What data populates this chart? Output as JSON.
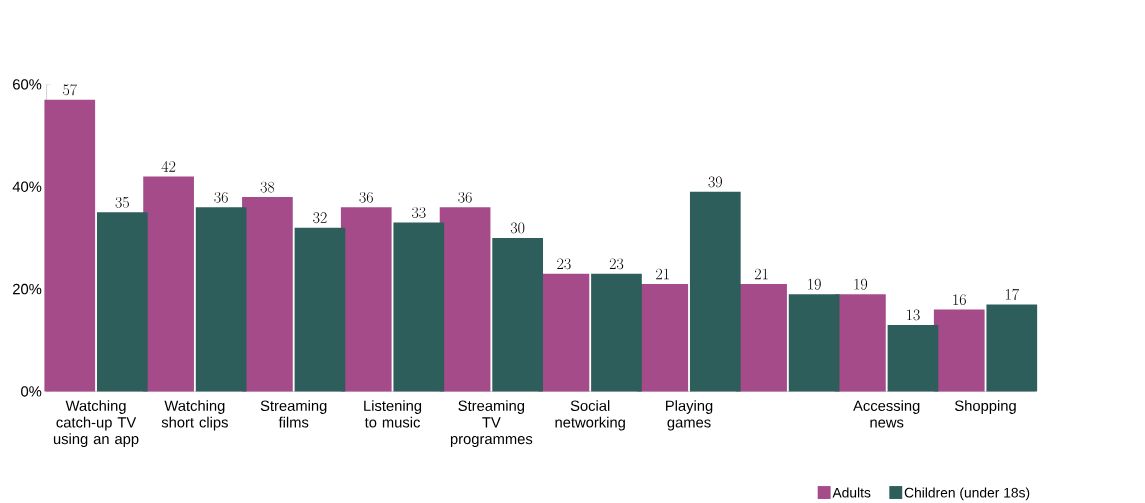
{
  "chart_data": {
    "type": "bar",
    "categories": [
      "Watching catch-up TV using an app",
      "Watching short clips",
      "Streaming films",
      "Listening to music",
      "Streaming TV programmes",
      "Social networking",
      "Playing games",
      null,
      "Accessing news",
      "Shopping"
    ],
    "series": [
      {
        "name": "Adults",
        "color": "#a64b89",
        "values": [
          57,
          42,
          38,
          36,
          36,
          23,
          21,
          21,
          19,
          16
        ]
      },
      {
        "name": "Children (under 18s)",
        "color": "#2e5e5b",
        "values": [
          35,
          36,
          32,
          33,
          30,
          23,
          39,
          19,
          13,
          17
        ]
      }
    ],
    "ylim": [
      0,
      60
    ],
    "yticks": [
      {
        "value": 0,
        "label": "0%"
      },
      {
        "value": 20,
        "label": "20%"
      },
      {
        "value": 40,
        "label": "40%"
      },
      {
        "value": 60,
        "label": "60%"
      }
    ],
    "data_labels": true,
    "grid": false,
    "legend": "bottom right"
  }
}
